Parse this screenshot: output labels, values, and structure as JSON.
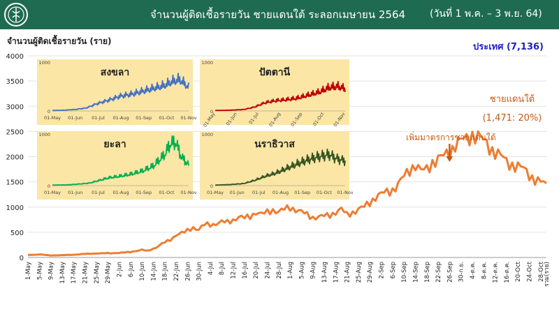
{
  "header": {
    "title": "จำนวนผู้ติดเชื้อรายวัน ชายแดนใต้  ระลอกเมษายน 2564",
    "date_range": "(วันที่ 1 พ.ค. – 3 พ.ย. 64)"
  },
  "colors": {
    "header_bg": "#1f6b52",
    "main_line": "#ed7d31",
    "inset_bg": "#fbe6a6"
  },
  "chart_data": [
    {
      "id": "main",
      "type": "line",
      "ylabel": "จำนวนผู้ติดเชื้อรายวัน (ราย)",
      "ylim": [
        0,
        4000
      ],
      "yticks": [
        0,
        500,
        1000,
        1500,
        2000,
        2500,
        3000,
        3500,
        4000
      ],
      "x_tick_labels": [
        "1-May",
        "5-May",
        "9-May",
        "13-May",
        "17-May",
        "21-May",
        "25-May",
        "29-May",
        "2-Jun",
        "6-Jun",
        "10-Jun",
        "14-Jun",
        "18-Jun",
        "22-Jun",
        "26-Jun",
        "30-Jun",
        "4-Jul",
        "8-Jul",
        "12-Jul",
        "16-Jul",
        "20-Jul",
        "24-Jul",
        "28-Jul",
        "1-Aug",
        "5-Aug",
        "9-Aug",
        "13-Aug",
        "17-Aug",
        "21-Aug",
        "25-Aug",
        "29-Aug",
        "2-Sep",
        "6-Sep",
        "10-Sep",
        "14-Sep",
        "18-Sep",
        "22-Sep",
        "26-Sep",
        "30-ก.ย.",
        "4-ต.ค.",
        "8-ต.ค.",
        "12-ต.ค.",
        "16-ต.ค.",
        "20-Oct",
        "24-Oct",
        "28-Oct",
        "รวม(ราย)"
      ],
      "series_name": "ชายแดนใต้",
      "summary_label": "(1,471: 20%)",
      "national_total": "ประเทศ (7,136)",
      "annotation": "เพิ่มมาตรการชายแดนใต้",
      "annotation_x_label": "26-Sep",
      "grid": true,
      "keypoints": [
        [
          0,
          50
        ],
        [
          4,
          60
        ],
        [
          8,
          40
        ],
        [
          12,
          45
        ],
        [
          16,
          55
        ],
        [
          20,
          70
        ],
        [
          24,
          80
        ],
        [
          28,
          85
        ],
        [
          32,
          90
        ],
        [
          36,
          110
        ],
        [
          40,
          150
        ],
        [
          42,
          130
        ],
        [
          45,
          200
        ],
        [
          48,
          300
        ],
        [
          50,
          350
        ],
        [
          52,
          450
        ],
        [
          55,
          500
        ],
        [
          58,
          600
        ],
        [
          60,
          550
        ],
        [
          62,
          650
        ],
        [
          65,
          660
        ],
        [
          68,
          700
        ],
        [
          70,
          700
        ],
        [
          72,
          750
        ],
        [
          74,
          800
        ],
        [
          76,
          780
        ],
        [
          78,
          820
        ],
        [
          80,
          900
        ],
        [
          82,
          850
        ],
        [
          84,
          900
        ],
        [
          86,
          950
        ],
        [
          88,
          900
        ],
        [
          90,
          950
        ],
        [
          92,
          1000
        ],
        [
          94,
          950
        ],
        [
          96,
          900
        ],
        [
          98,
          850
        ],
        [
          100,
          800
        ],
        [
          102,
          800
        ],
        [
          104,
          820
        ],
        [
          106,
          850
        ],
        [
          108,
          900
        ],
        [
          110,
          950
        ],
        [
          112,
          850
        ],
        [
          114,
          900
        ],
        [
          116,
          950
        ],
        [
          118,
          1000
        ],
        [
          120,
          1100
        ],
        [
          122,
          1200
        ],
        [
          124,
          1250
        ],
        [
          126,
          1300
        ],
        [
          128,
          1350
        ],
        [
          130,
          1450
        ],
        [
          132,
          1600
        ],
        [
          134,
          1750
        ],
        [
          136,
          1850
        ],
        [
          138,
          1700
        ],
        [
          140,
          1750
        ],
        [
          142,
          1900
        ],
        [
          144,
          1950
        ],
        [
          146,
          2000
        ],
        [
          148,
          2100
        ],
        [
          150,
          2250
        ],
        [
          152,
          2300
        ],
        [
          154,
          2350
        ],
        [
          156,
          2450
        ],
        [
          158,
          2400
        ],
        [
          160,
          2300
        ],
        [
          162,
          2200
        ],
        [
          164,
          2100
        ],
        [
          166,
          2000
        ],
        [
          168,
          1900
        ],
        [
          170,
          1850
        ],
        [
          172,
          1800
        ],
        [
          174,
          1750
        ],
        [
          176,
          1650
        ],
        [
          178,
          1550
        ],
        [
          180,
          1480
        ],
        [
          182,
          1471
        ]
      ]
    },
    {
      "id": "songkhla",
      "type": "line",
      "title": "สงขลา",
      "color": "#4472c4",
      "ytick_labels": [
        "1000",
        "0"
      ],
      "ylim": [
        0,
        1000
      ],
      "x_tick_labels": [
        "01-May",
        "01-Jun",
        "01-Jul",
        "01-Aug",
        "01-Sep",
        "01-Oct",
        "01-Nov"
      ],
      "keypoints": [
        [
          0,
          10
        ],
        [
          15,
          15
        ],
        [
          30,
          30
        ],
        [
          45,
          60
        ],
        [
          60,
          150
        ],
        [
          75,
          220
        ],
        [
          90,
          300
        ],
        [
          105,
          340
        ],
        [
          120,
          400
        ],
        [
          135,
          460
        ],
        [
          150,
          520
        ],
        [
          160,
          600
        ],
        [
          170,
          640
        ],
        [
          182,
          480
        ]
      ]
    },
    {
      "id": "pattani",
      "type": "line",
      "title": "ปัตตานี",
      "color": "#c00000",
      "ytick_labels": [
        "1000",
        "0"
      ],
      "ylim": [
        0,
        1000
      ],
      "x_tick_labels": [
        "01-May",
        "01-Jun",
        "01-Jul",
        "01-Aug",
        "01-Sep",
        "01-Oct",
        "01-Nov"
      ],
      "keypoints": [
        [
          0,
          10
        ],
        [
          20,
          15
        ],
        [
          40,
          30
        ],
        [
          55,
          80
        ],
        [
          70,
          170
        ],
        [
          85,
          210
        ],
        [
          100,
          230
        ],
        [
          115,
          260
        ],
        [
          130,
          320
        ],
        [
          145,
          380
        ],
        [
          160,
          480
        ],
        [
          172,
          500
        ],
        [
          182,
          450
        ]
      ]
    },
    {
      "id": "yala",
      "type": "line",
      "title": "ยะลา",
      "color": "#00b050",
      "ytick_labels": [
        "1000",
        "0"
      ],
      "ylim": [
        0,
        1000
      ],
      "x_tick_labels": [
        "01-May",
        "01-Jun",
        "01-Jul",
        "01-Aug",
        "01-Sep",
        "01-Oct",
        "01-Nov"
      ],
      "keypoints": [
        [
          0,
          10
        ],
        [
          20,
          15
        ],
        [
          35,
          30
        ],
        [
          50,
          50
        ],
        [
          60,
          90
        ],
        [
          75,
          150
        ],
        [
          90,
          180
        ],
        [
          105,
          220
        ],
        [
          120,
          280
        ],
        [
          135,
          380
        ],
        [
          150,
          600
        ],
        [
          158,
          820
        ],
        [
          165,
          830
        ],
        [
          172,
          560
        ],
        [
          182,
          400
        ]
      ]
    },
    {
      "id": "narathiwat",
      "type": "line",
      "title": "นราธิวาส",
      "color": "#375623",
      "ytick_labels": [
        "1000",
        "0"
      ],
      "ylim": [
        0,
        1000
      ],
      "x_tick_labels": [
        "01-May",
        "01-Jun",
        "01-Jul",
        "01-Aug",
        "01-Sep",
        "01-Oct",
        "01-Nov"
      ],
      "keypoints": [
        [
          0,
          10
        ],
        [
          20,
          20
        ],
        [
          40,
          40
        ],
        [
          55,
          100
        ],
        [
          70,
          180
        ],
        [
          85,
          240
        ],
        [
          100,
          330
        ],
        [
          115,
          420
        ],
        [
          130,
          500
        ],
        [
          145,
          560
        ],
        [
          160,
          600
        ],
        [
          170,
          520
        ],
        [
          182,
          480
        ]
      ]
    }
  ]
}
